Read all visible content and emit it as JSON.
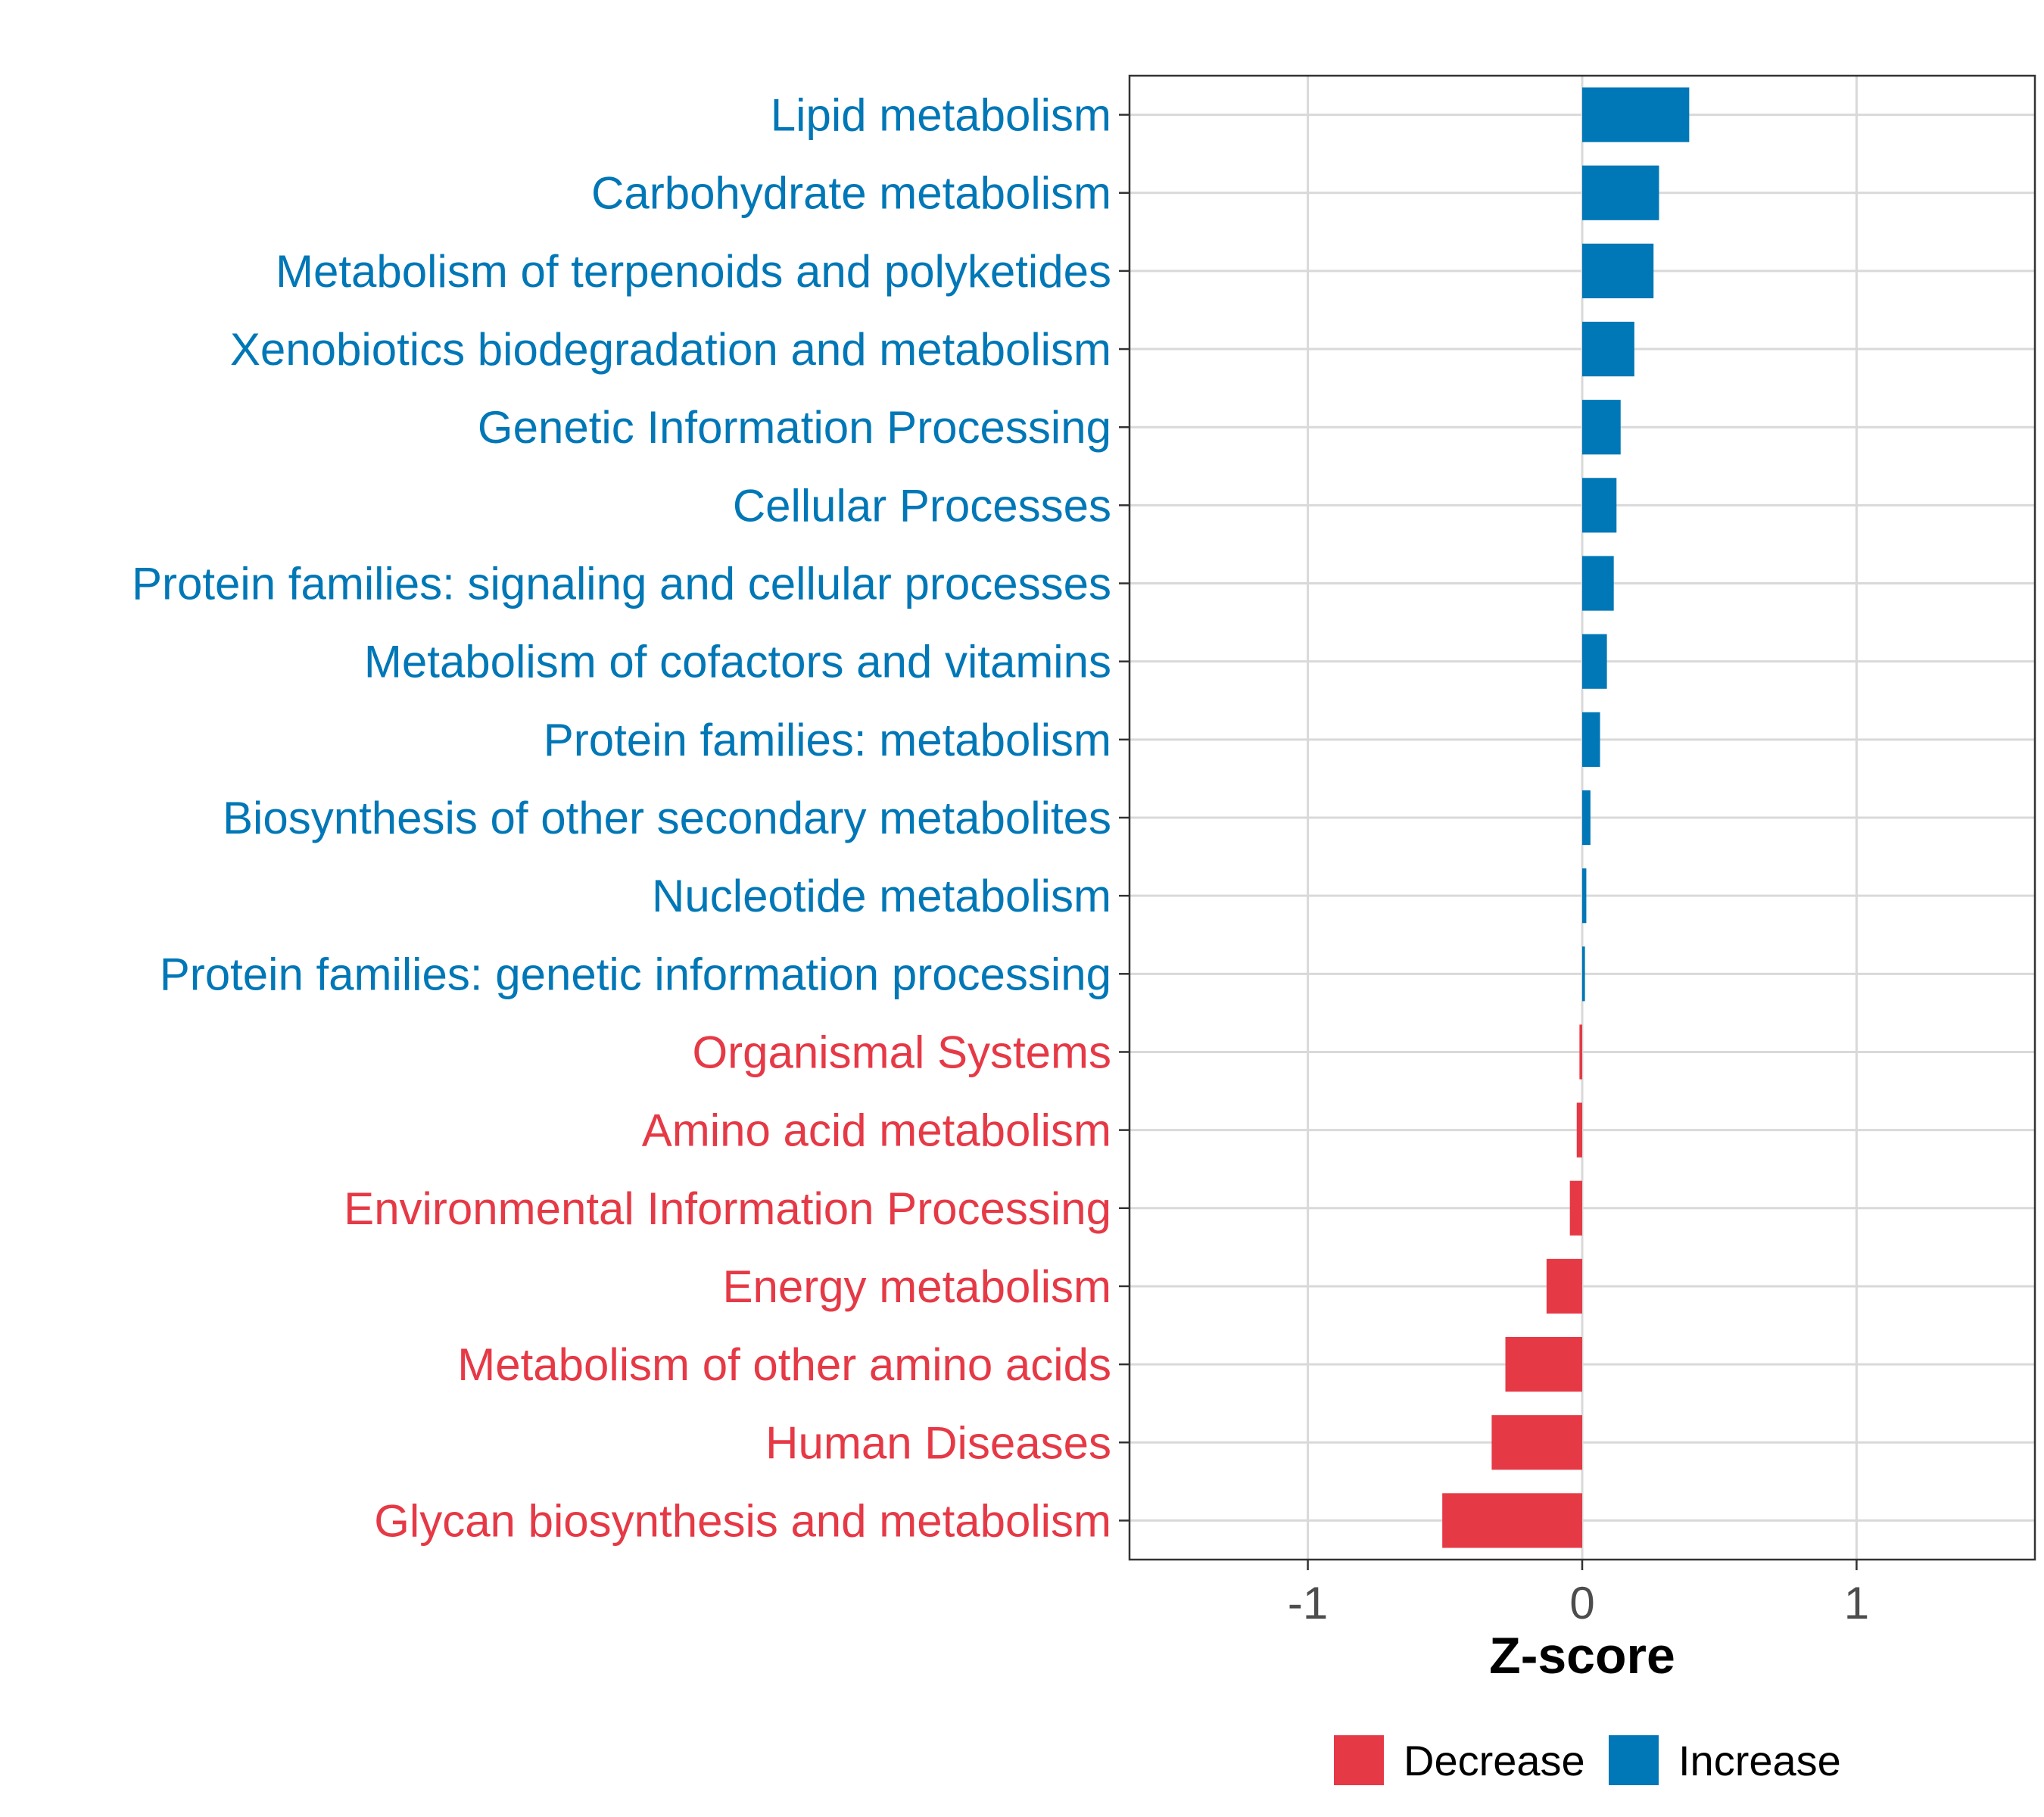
{
  "chart_data": {
    "type": "bar",
    "orientation": "horizontal",
    "title": "",
    "xlabel": "Z-score",
    "ylabel": "",
    "xlim": [
      -1.65,
      1.65
    ],
    "x_ticks": [
      -1,
      0,
      1
    ],
    "x_tick_labels": [
      "-1",
      "0",
      "1"
    ],
    "grid": true,
    "legend_position": "bottom",
    "categories": [
      "Lipid metabolism",
      "Carbohydrate metabolism",
      "Metabolism of terpenoids and polyketides",
      "Xenobiotics biodegradation and metabolism",
      "Genetic Information Processing",
      "Cellular Processes",
      "Protein families: signaling and cellular processes",
      "Metabolism of cofactors and vitamins",
      "Protein families: metabolism",
      "Biosynthesis of other secondary metabolites",
      "Nucleotide metabolism",
      "Protein families: genetic information processing",
      "Organismal Systems",
      "Amino acid metabolism",
      "Environmental Information Processing",
      "Energy metabolism",
      "Metabolism of other amino acids",
      "Human Diseases",
      "Glycan biosynthesis and metabolism"
    ],
    "values": [
      0.39,
      0.28,
      0.26,
      0.19,
      0.14,
      0.125,
      0.115,
      0.09,
      0.065,
      0.03,
      0.015,
      0.01,
      -0.01,
      -0.02,
      -0.045,
      -0.13,
      -0.28,
      -0.33,
      -0.51
    ],
    "groups": [
      "Increase",
      "Increase",
      "Increase",
      "Increase",
      "Increase",
      "Increase",
      "Increase",
      "Increase",
      "Increase",
      "Increase",
      "Increase",
      "Increase",
      "Decrease",
      "Decrease",
      "Decrease",
      "Decrease",
      "Decrease",
      "Decrease",
      "Decrease"
    ],
    "legend": [
      {
        "name": "Decrease",
        "color": "#E63946"
      },
      {
        "name": "Increase",
        "color": "#0077B6"
      }
    ],
    "colors": {
      "Increase": "#0077B6",
      "Decrease": "#E63946",
      "grid": "#D9D9D9",
      "panel_border": "#333333"
    }
  }
}
